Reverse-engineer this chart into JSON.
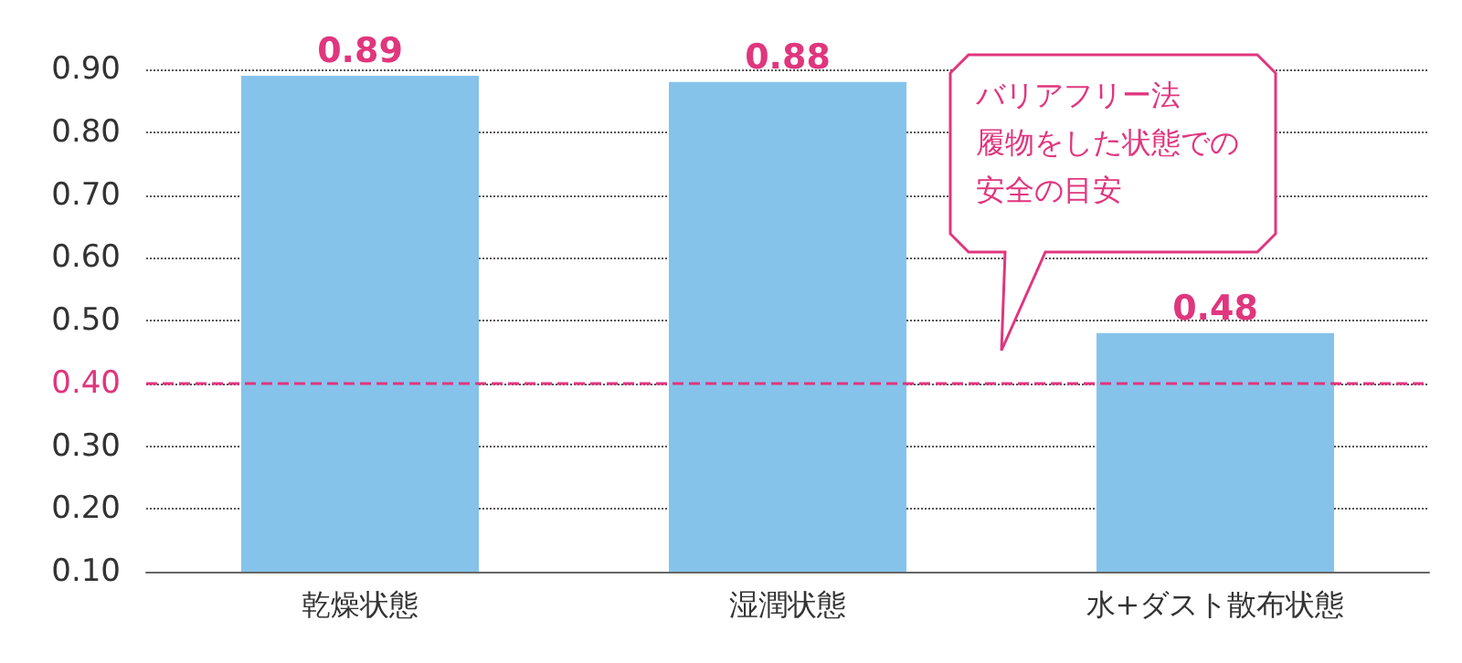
{
  "chart_data": {
    "type": "bar",
    "categories": [
      "乾燥状態",
      "湿潤状態",
      "水+ダスト散布状態"
    ],
    "values": [
      0.89,
      0.88,
      0.48
    ],
    "color": "#85c3eb",
    "data_labels": true,
    "ylim": [
      0.1,
      0.9
    ],
    "yticks": [
      {
        "value": 0.1,
        "label": "0.10"
      },
      {
        "value": 0.2,
        "label": "0.20"
      },
      {
        "value": 0.3,
        "label": "0.30"
      },
      {
        "value": 0.4,
        "label": "0.40"
      },
      {
        "value": 0.5,
        "label": "0.50"
      },
      {
        "value": 0.6,
        "label": "0.60"
      },
      {
        "value": 0.7,
        "label": "0.70"
      },
      {
        "value": 0.8,
        "label": "0.80"
      },
      {
        "value": 0.9,
        "label": "0.90"
      }
    ],
    "grid": "y",
    "annotations": [
      "バリアフリー法",
      "履物をした状態での",
      "安全の目安"
    ],
    "ref_lines": [
      {
        "axis": "y",
        "value": 0.4,
        "color": "#e0367e",
        "line_style": "dashed"
      }
    ]
  }
}
